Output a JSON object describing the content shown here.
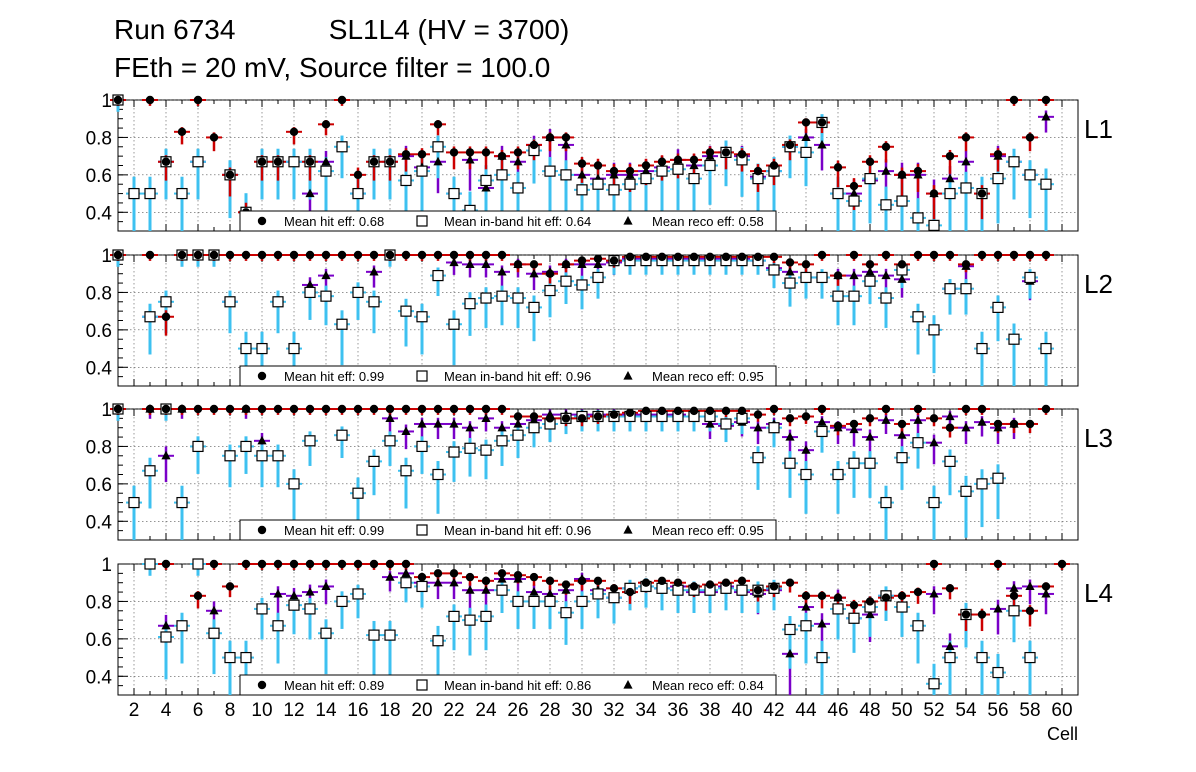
{
  "header": {
    "run": "Run 6734",
    "chamber": "SL1L4 (HV = 3700)",
    "settings": "FEth = 20 mV, Source filter = 100.0"
  },
  "chart_data": {
    "type": "scatter",
    "title": "Run 6734 SL1L4 (HV = 3700) — FEth = 20 mV, Source filter = 100.0",
    "xlabel": "Cell",
    "ylabel": "",
    "xlim": [
      1,
      61
    ],
    "ylim": [
      0.3,
      1.0
    ],
    "x_ticks": [
      2,
      4,
      6,
      8,
      10,
      12,
      14,
      16,
      18,
      20,
      22,
      24,
      26,
      28,
      30,
      32,
      34,
      36,
      38,
      40,
      42,
      44,
      46,
      48,
      50,
      52,
      54,
      56,
      58,
      60
    ],
    "y_ticks": [
      0.4,
      0.6,
      0.8,
      1
    ],
    "grid": true,
    "series_styles": [
      {
        "key": "hit",
        "marker": "filled-circle",
        "color": "#000000"
      },
      {
        "key": "inband",
        "marker": "open-square",
        "color": "#000000"
      },
      {
        "key": "reco",
        "marker": "filled-triangle",
        "color": "#000000"
      }
    ],
    "error_colors": {
      "hit": "#cc0000",
      "inband": "#3ec1f0",
      "reco": "#7a00c8"
    },
    "panels": [
      {
        "label": "L1",
        "legend": {
          "hit": "Mean hit  eff: 0.68",
          "inband": "Mean in-band hit eff: 0.64",
          "reco": "Mean reco eff: 0.58"
        },
        "hit": [
          1,
          null,
          1,
          0.67,
          0.83,
          1,
          0.8,
          0.6,
          0.4,
          0.67,
          0.67,
          0.83,
          0.67,
          0.87,
          1,
          0.6,
          0.67,
          0.67,
          0.71,
          0.71,
          0.87,
          0.72,
          0.72,
          0.72,
          0.7,
          0.72,
          0.76,
          0.8,
          0.8,
          0.66,
          0.65,
          0.62,
          0.62,
          0.65,
          0.67,
          0.68,
          0.68,
          0.72,
          0.72,
          0.71,
          0.62,
          0.65,
          0.76,
          0.88,
          0.88,
          0.64,
          0.54,
          0.67,
          0.75,
          0.6,
          0.62,
          0.5,
          0.7,
          0.8,
          0.5,
          0.71,
          1,
          0.8,
          1,
          null
        ],
        "inband": [
          1,
          0.5,
          0.5,
          0.67,
          0.5,
          0.67,
          null,
          0.6,
          0.4,
          0.67,
          0.67,
          0.67,
          0.67,
          0.62,
          0.75,
          0.5,
          0.67,
          0.67,
          0.57,
          0.62,
          0.75,
          0.5,
          0.41,
          0.57,
          0.6,
          0.53,
          0.73,
          0.62,
          0.6,
          0.52,
          0.55,
          0.52,
          0.55,
          0.58,
          0.62,
          0.63,
          0.58,
          0.65,
          0.72,
          0.68,
          0.58,
          0.62,
          0.75,
          0.72,
          0.88,
          0.5,
          0.46,
          0.58,
          0.44,
          0.46,
          0.37,
          0.33,
          0.5,
          0.53,
          0.5,
          0.58,
          0.67,
          0.6,
          0.55,
          null
        ],
        "reco": [
          1,
          null,
          null,
          0.67,
          null,
          0.67,
          null,
          0.6,
          null,
          null,
          null,
          0.67,
          0.5,
          0.67,
          null,
          0.5,
          null,
          0.67,
          0.7,
          0.64,
          0.67,
          0.5,
          0.68,
          0.53,
          0.7,
          0.67,
          0.76,
          0.8,
          0.76,
          0.6,
          0.58,
          0.6,
          0.6,
          0.62,
          0.64,
          0.68,
          0.65,
          0.7,
          0.72,
          0.7,
          0.59,
          0.62,
          0.75,
          0.8,
          0.76,
          0.5,
          0.5,
          0.57,
          0.62,
          0.6,
          0.6,
          0.5,
          0.58,
          0.67,
          0.5,
          0.7,
          0.67,
          0.6,
          0.91,
          null
        ]
      },
      {
        "label": "L2",
        "legend": {
          "hit": "Mean hit  eff: 0.99",
          "inband": "Mean in-band hit eff: 0.96",
          "reco": "Mean reco eff: 0.95"
        },
        "hit": [
          1,
          null,
          1,
          0.67,
          1,
          1,
          1,
          1,
          1,
          1,
          1,
          1,
          1,
          1,
          1,
          1,
          1,
          1,
          1,
          1,
          1,
          1,
          1,
          1,
          1,
          0.95,
          0.95,
          0.9,
          0.95,
          0.97,
          0.98,
          0.97,
          0.99,
          0.99,
          0.99,
          0.99,
          0.99,
          0.99,
          0.99,
          0.99,
          0.99,
          0.99,
          0.96,
          0.95,
          1,
          0.89,
          1,
          0.95,
          1,
          0.95,
          1,
          1,
          1,
          0.95,
          1,
          1,
          1,
          1,
          1,
          null
        ],
        "inband": [
          1,
          null,
          0.67,
          0.75,
          1,
          1,
          1,
          0.75,
          0.5,
          0.5,
          0.75,
          0.5,
          0.8,
          0.78,
          0.63,
          0.8,
          0.75,
          1,
          0.7,
          0.67,
          0.89,
          0.63,
          0.74,
          0.77,
          0.78,
          0.77,
          0.72,
          0.81,
          0.86,
          0.84,
          0.88,
          0.97,
          0.97,
          0.97,
          0.97,
          0.97,
          0.97,
          0.97,
          0.97,
          0.97,
          0.97,
          0.92,
          0.85,
          0.88,
          0.88,
          0.78,
          0.78,
          0.86,
          0.77,
          0.92,
          0.67,
          0.6,
          0.82,
          0.82,
          0.5,
          0.72,
          0.55,
          0.88,
          0.5,
          null
        ],
        "reco": [
          1,
          null,
          0.67,
          null,
          1,
          1,
          1,
          0.75,
          null,
          null,
          null,
          null,
          0.84,
          0.89,
          null,
          null,
          0.91,
          1,
          null,
          null,
          null,
          0.96,
          0.95,
          0.95,
          0.91,
          0.95,
          0.9,
          0.91,
          0.95,
          0.95,
          0.95,
          0.96,
          0.98,
          0.98,
          0.98,
          0.98,
          0.98,
          0.98,
          0.98,
          0.98,
          0.97,
          0.93,
          0.91,
          0.88,
          0.88,
          0.89,
          0.89,
          0.91,
          0.89,
          0.87,
          null,
          null,
          0.82,
          0.94,
          null,
          null,
          null,
          0.86,
          null,
          null
        ]
      },
      {
        "label": "L3",
        "legend": {
          "hit": "Mean hit  eff: 0.99",
          "inband": "Mean in-band hit eff: 0.96",
          "reco": "Mean reco eff: 0.95"
        },
        "hit": [
          1,
          null,
          1,
          1,
          1,
          1,
          1,
          1,
          1,
          1,
          1,
          1,
          1,
          1,
          1,
          1,
          1,
          1,
          1,
          1,
          1,
          1,
          1,
          1,
          1,
          0.96,
          0.96,
          0.95,
          0.95,
          0.95,
          0.96,
          0.97,
          0.98,
          0.99,
          0.99,
          0.99,
          0.99,
          0.99,
          0.99,
          0.99,
          0.97,
          1,
          0.95,
          0.96,
          1,
          0.91,
          0.92,
          0.95,
          1,
          0.92,
          1,
          0.95,
          0.9,
          1,
          1,
          0.92,
          0.92,
          0.92,
          1,
          null
        ],
        "inband": [
          1,
          0.5,
          0.67,
          1,
          0.5,
          0.8,
          null,
          0.75,
          0.8,
          0.75,
          0.75,
          0.6,
          0.83,
          null,
          0.86,
          0.55,
          0.72,
          0.83,
          0.67,
          0.8,
          0.65,
          0.77,
          0.79,
          0.78,
          0.83,
          0.86,
          0.9,
          0.92,
          0.95,
          0.96,
          0.96,
          0.96,
          0.96,
          0.96,
          0.96,
          0.96,
          0.96,
          0.96,
          0.92,
          0.95,
          0.74,
          0.9,
          0.71,
          0.65,
          0.88,
          0.65,
          0.71,
          0.71,
          0.5,
          0.74,
          0.82,
          0.5,
          0.72,
          0.56,
          0.6,
          0.63,
          null,
          null,
          null,
          null
        ],
        "reco": [
          1,
          null,
          1,
          0.75,
          1,
          null,
          null,
          null,
          1,
          0.83,
          null,
          null,
          null,
          null,
          null,
          null,
          null,
          0.95,
          0.88,
          0.92,
          0.92,
          0.92,
          0.9,
          0.95,
          0.9,
          0.92,
          0.94,
          0.97,
          0.97,
          0.97,
          0.97,
          0.97,
          0.97,
          0.97,
          0.97,
          0.97,
          0.96,
          0.92,
          0.91,
          0.93,
          0.9,
          0.92,
          0.85,
          0.78,
          0.93,
          0.9,
          0.89,
          0.85,
          0.94,
          0.86,
          0.94,
          0.82,
          0.96,
          0.9,
          0.93,
          0.9,
          0.92,
          null,
          null,
          null
        ]
      },
      {
        "label": "L4",
        "legend": {
          "hit": "Mean hit  eff: 0.89",
          "inband": "Mean in-band hit eff: 0.86",
          "reco": "Mean reco eff: 0.84"
        },
        "hit": [
          null,
          null,
          null,
          1,
          null,
          0.83,
          1,
          0.88,
          1,
          1,
          1,
          1,
          1,
          1,
          1,
          1,
          1,
          1,
          1,
          0.93,
          0.95,
          0.95,
          0.93,
          0.91,
          0.95,
          0.94,
          0.93,
          0.91,
          0.89,
          0.91,
          0.91,
          0.87,
          0.85,
          0.9,
          0.91,
          0.9,
          0.88,
          0.89,
          0.9,
          0.91,
          0.86,
          0.88,
          0.9,
          0.83,
          0.83,
          0.82,
          0.78,
          0.8,
          0.82,
          0.83,
          0.85,
          1,
          0.87,
          0.73,
          0.73,
          1,
          0.83,
          0.75,
          0.88,
          1
        ],
        "inband": [
          null,
          null,
          1,
          0.61,
          0.67,
          1,
          0.63,
          0.5,
          0.5,
          0.76,
          0.67,
          0.78,
          0.76,
          0.63,
          0.8,
          0.84,
          0.62,
          0.62,
          0.9,
          0.88,
          0.59,
          0.72,
          0.7,
          0.72,
          0.86,
          0.8,
          0.8,
          0.8,
          0.74,
          0.8,
          0.84,
          0.82,
          0.87,
          0.88,
          0.87,
          0.86,
          0.86,
          0.86,
          0.87,
          0.86,
          0.86,
          0.87,
          0.65,
          0.67,
          0.5,
          0.76,
          0.71,
          0.77,
          0.83,
          0.77,
          0.67,
          0.36,
          0.5,
          0.73,
          0.5,
          0.42,
          0.75,
          0.5,
          null,
          null
        ],
        "reco": [
          null,
          null,
          null,
          0.67,
          null,
          null,
          0.75,
          null,
          null,
          null,
          0.84,
          0.83,
          0.85,
          0.88,
          null,
          null,
          null,
          0.93,
          0.95,
          0.9,
          0.9,
          0.9,
          0.86,
          0.86,
          0.92,
          0.92,
          0.85,
          0.84,
          0.86,
          0.92,
          0.86,
          0.82,
          0.87,
          0.88,
          0.87,
          0.88,
          0.85,
          0.85,
          0.88,
          0.85,
          0.84,
          0.86,
          0.52,
          0.77,
          0.68,
          0.82,
          0.71,
          0.73,
          0.83,
          null,
          null,
          0.84,
          0.56,
          null,
          null,
          0.76,
          0.87,
          0.88,
          0.84,
          null
        ]
      }
    ]
  }
}
